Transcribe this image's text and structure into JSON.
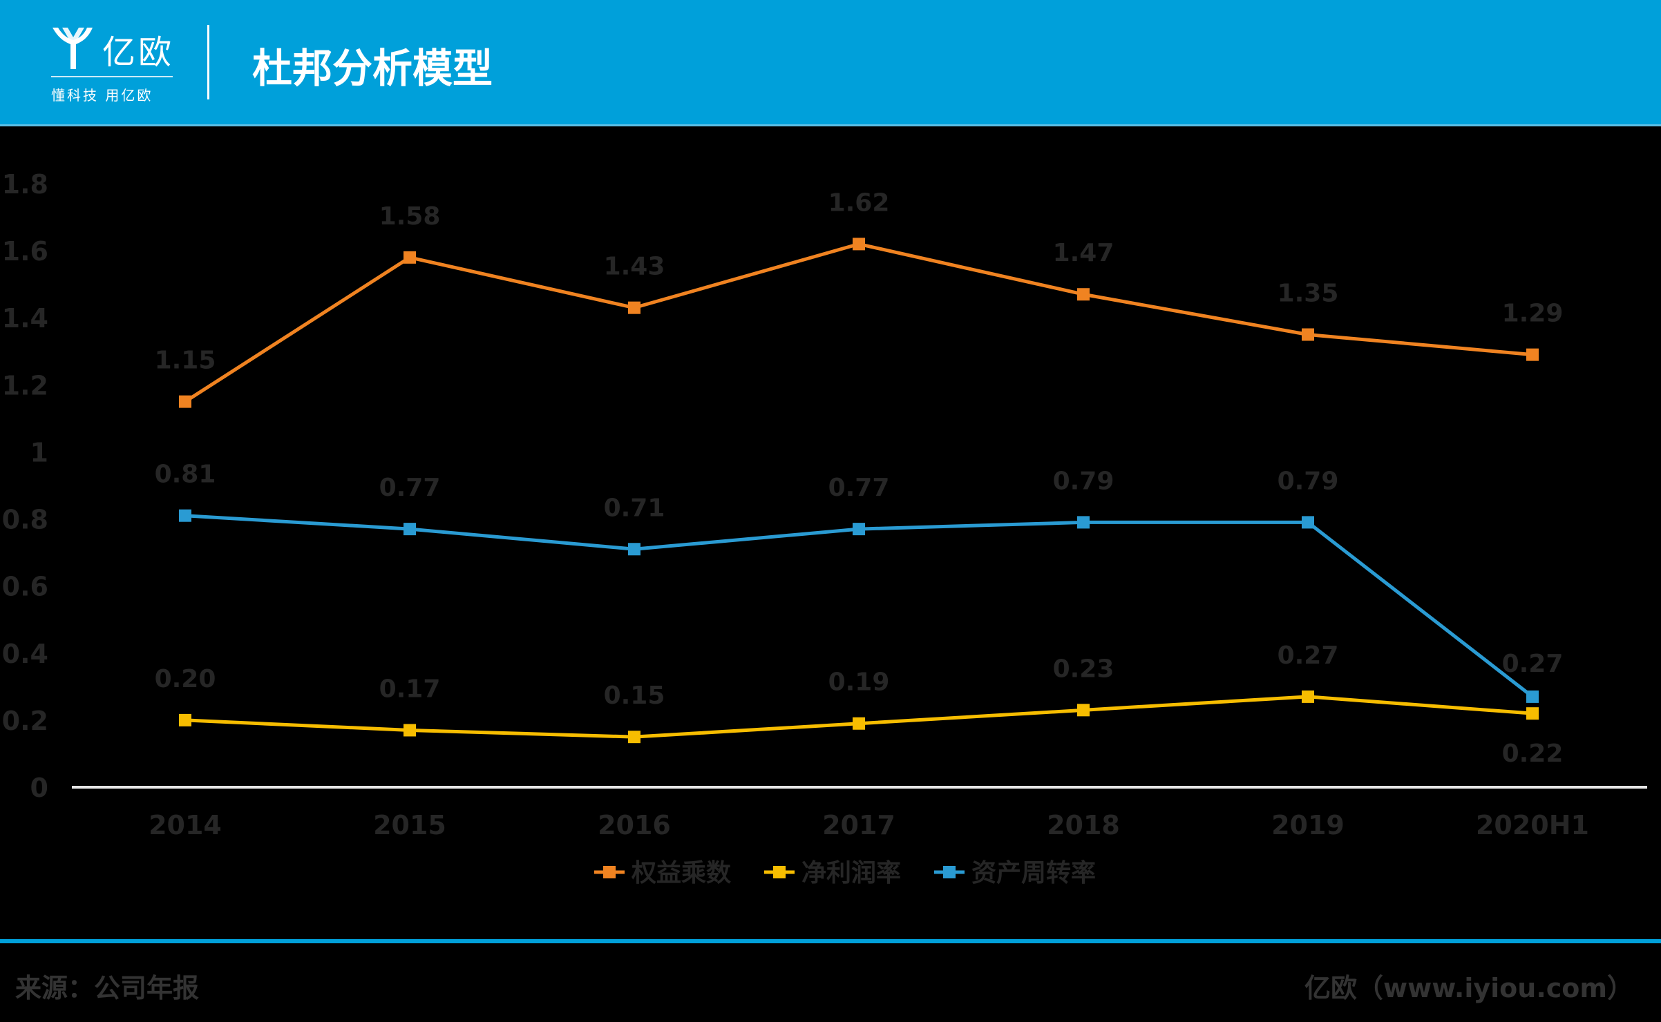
{
  "header": {
    "logo_name": "亿欧",
    "logo_slogan": "懂科技 用亿欧",
    "title": "杜邦分析模型",
    "bg_color": "#00A0DA"
  },
  "footer": {
    "source": "来源：公司年报",
    "brand": "亿欧（www.iyiou.com）"
  },
  "chart_data": {
    "type": "line",
    "title": "",
    "xlabel": "",
    "ylabel": "",
    "categories": [
      "2014",
      "2015",
      "2016",
      "2017",
      "2018",
      "2019",
      "2020H1"
    ],
    "yticks": [
      "0",
      "0.2",
      "0.4",
      "0.6",
      "0.8",
      "1",
      "1.2",
      "1.4",
      "1.6",
      "1.8"
    ],
    "ylim": [
      0,
      1.8
    ],
    "grid": false,
    "legend_position": "bottom",
    "series": [
      {
        "name": "权益乘数",
        "color": "#F08321",
        "values": [
          1.15,
          1.58,
          1.43,
          1.62,
          1.47,
          1.35,
          1.29
        ],
        "labels": [
          "1.15",
          "1.58",
          "1.43",
          "1.62",
          "1.47",
          "1.35",
          "1.29"
        ]
      },
      {
        "name": "净利润率",
        "color": "#F7BD00",
        "values": [
          0.2,
          0.17,
          0.15,
          0.19,
          0.23,
          0.27,
          0.22
        ],
        "labels": [
          "0.20",
          "0.17",
          "0.15",
          "0.19",
          "0.23",
          "0.27",
          "0.22"
        ]
      },
      {
        "name": "资产周转率",
        "color": "#2A9BD3",
        "values": [
          0.81,
          0.77,
          0.71,
          0.77,
          0.79,
          0.79,
          0.27
        ],
        "labels": [
          "0.81",
          "0.77",
          "0.71",
          "0.77",
          "0.79",
          "0.79",
          "0.27"
        ]
      }
    ]
  }
}
